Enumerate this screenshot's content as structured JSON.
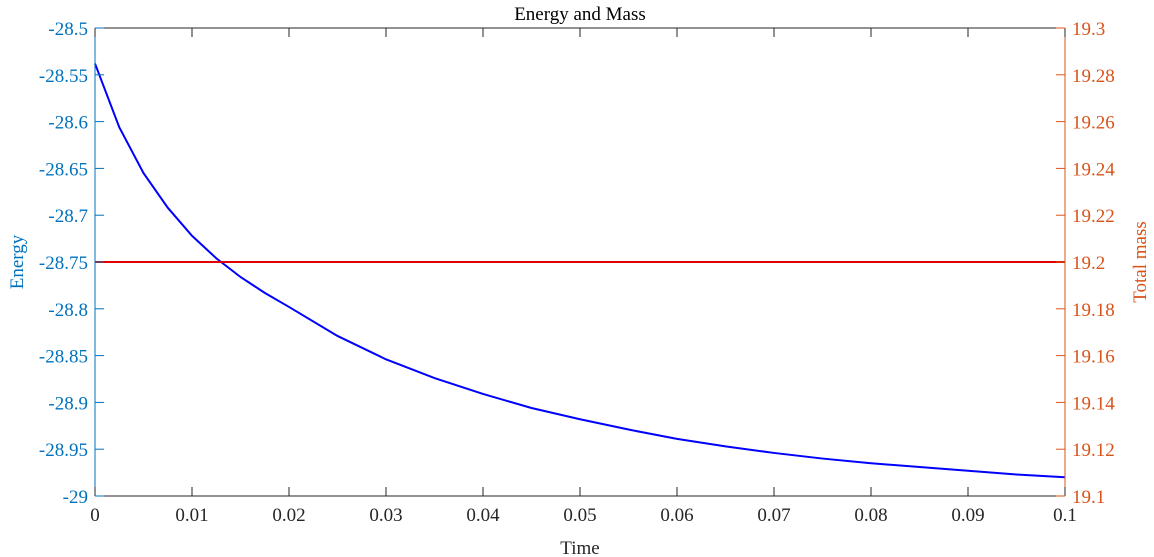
{
  "chart_data": {
    "type": "line",
    "title": "Energy and Mass",
    "xlabel": "Time",
    "xlim": [
      0,
      0.1
    ],
    "x_ticks": [
      "0",
      "0.01",
      "0.02",
      "0.03",
      "0.04",
      "0.05",
      "0.06",
      "0.07",
      "0.08",
      "0.09",
      "0.1"
    ],
    "left_axis": {
      "label": "Energy",
      "ylim": [
        -29,
        -28.5
      ],
      "ticks": [
        "-28.5",
        "-28.55",
        "-28.6",
        "-28.65",
        "-28.7",
        "-28.75",
        "-28.8",
        "-28.85",
        "-28.9",
        "-28.95",
        "-29"
      ],
      "color": "#0072BD"
    },
    "right_axis": {
      "label": "Total mass",
      "ylim": [
        19.1,
        19.3
      ],
      "ticks": [
        "19.3",
        "19.28",
        "19.26",
        "19.24",
        "19.22",
        "19.2",
        "19.18",
        "19.16",
        "19.14",
        "19.12",
        "19.1"
      ],
      "color": "#D95319"
    },
    "series": [
      {
        "axis": "left",
        "color": "#0000FF",
        "x": [
          0,
          0.0025,
          0.005,
          0.0075,
          0.01,
          0.0125,
          0.015,
          0.0175,
          0.02,
          0.025,
          0.03,
          0.035,
          0.04,
          0.045,
          0.05,
          0.055,
          0.06,
          0.065,
          0.07,
          0.075,
          0.08,
          0.085,
          0.09,
          0.095,
          0.1
        ],
        "y": [
          -28.538,
          -28.606,
          -28.655,
          -28.692,
          -28.722,
          -28.746,
          -28.766,
          -28.783,
          -28.798,
          -28.829,
          -28.854,
          -28.874,
          -28.891,
          -28.906,
          -28.918,
          -28.929,
          -28.939,
          -28.947,
          -28.954,
          -28.96,
          -28.965,
          -28.969,
          -28.973,
          -28.977,
          -28.98
        ]
      },
      {
        "axis": "right",
        "color": "#E00000",
        "x": [
          0,
          0.1
        ],
        "y": [
          19.2,
          19.2
        ]
      }
    ],
    "grid": false,
    "box": true
  }
}
